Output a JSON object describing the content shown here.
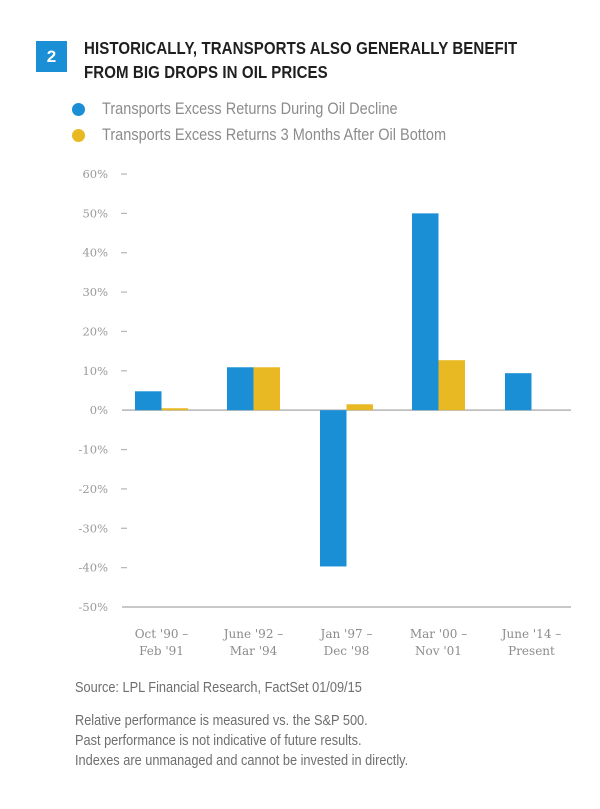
{
  "figure": {
    "number": "2",
    "title_line1": "HISTORICALLY, TRANSPORTS ALSO GENERALLY BENEFIT",
    "title_line2": "FROM BIG DROPS IN OIL PRICES"
  },
  "colors": {
    "blue": "#1a8fd6",
    "yellow": "#e8b923",
    "axis": "#b5b5b5"
  },
  "chart_data": {
    "type": "bar",
    "title": "Historically, Transports Also Generally Benefit From Big Drops in Oil Prices",
    "xlabel": "",
    "ylabel": "",
    "categories": [
      [
        "Oct '90 –",
        "Feb '91"
      ],
      [
        "June '92 –",
        "Mar '94"
      ],
      [
        "Jan '97 –",
        "Dec '98"
      ],
      [
        "Mar '00 –",
        "Nov '01"
      ],
      [
        "June '14 –",
        "Present"
      ]
    ],
    "series": [
      {
        "name": "Transports Excess Returns During Oil Decline",
        "color": "#1a8fd6",
        "values": [
          4.8,
          10.9,
          -39.7,
          50.0,
          9.4
        ]
      },
      {
        "name": "Transports Excess Returns 3 Months After Oil Bottom",
        "color": "#e8b923",
        "values": [
          0.5,
          10.9,
          1.5,
          12.7,
          null
        ]
      }
    ],
    "ylim": [
      -50,
      60
    ],
    "yticks": [
      60,
      50,
      40,
      30,
      20,
      10,
      0,
      -10,
      -20,
      -30,
      -40,
      -50
    ],
    "ytick_labels": [
      "60%",
      "50%",
      "40%",
      "30%",
      "20%",
      "10%",
      "0%",
      "-10%",
      "-20%",
      "-30%",
      "-40%",
      "-50%"
    ],
    "legend_position": "top-left",
    "grid": false
  },
  "footer": {
    "source": "Source: LPL Financial Research, FactSet 01/09/15",
    "notes": [
      "Relative performance is measured vs. the S&P 500.",
      "Past performance is not indicative of future results.",
      "Indexes are unmanaged and cannot be invested in directly."
    ]
  }
}
